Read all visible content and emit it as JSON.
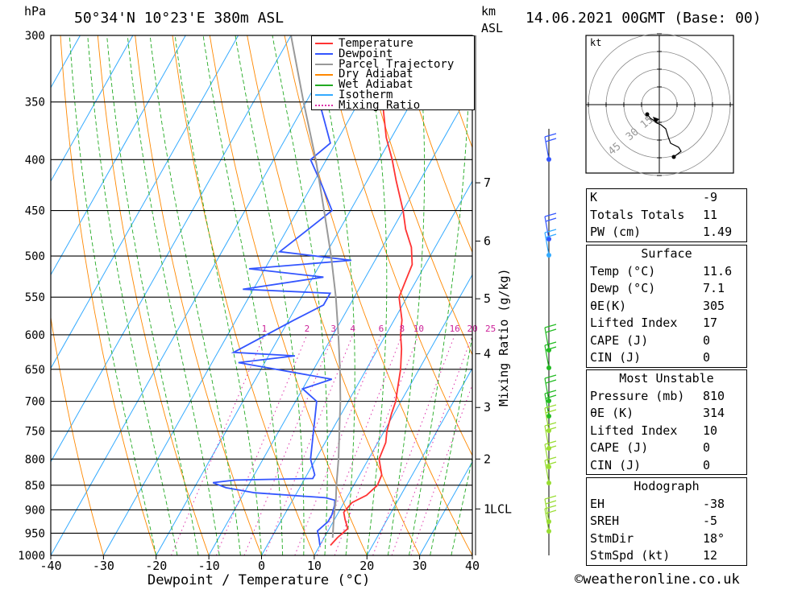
{
  "header": {
    "hpa_label": "hPa",
    "location": "50°34'N 10°23'E 380m ASL",
    "km_label": "km",
    "asl_label": "ASL",
    "datetime": "14.06.2021 00GMT (Base: 00)"
  },
  "axes": {
    "xlabel": "Dewpoint / Temperature (°C)",
    "mixing_label": "Mixing Ratio (g/kg)",
    "lcl_label": "LCL",
    "kt_label": "kt"
  },
  "legend": {
    "items": [
      {
        "label": "Temperature",
        "color": "#ff3333",
        "style": "solid"
      },
      {
        "label": "Dewpoint",
        "color": "#3355ff",
        "style": "solid"
      },
      {
        "label": "Parcel Trajectory",
        "color": "#999999",
        "style": "solid"
      },
      {
        "label": "Dry Adiabat",
        "color": "#ff8800",
        "style": "solid"
      },
      {
        "label": "Wet Adiabat",
        "color": "#22aa22",
        "style": "solid"
      },
      {
        "label": "Isotherm",
        "color": "#33aaff",
        "style": "solid"
      },
      {
        "label": "Mixing Ratio",
        "color": "#dd33aa",
        "style": "dotted"
      }
    ]
  },
  "chart_data": {
    "type": "line",
    "title": "50°34'N 10°23'E 380m ASL",
    "xlabel": "Dewpoint / Temperature (°C)",
    "ylabel": "hPa",
    "xlim": [
      -40,
      40
    ],
    "ylim": [
      1000,
      300
    ],
    "y_scale": "log",
    "pressure_ticks": [
      300,
      350,
      400,
      450,
      500,
      550,
      600,
      650,
      700,
      750,
      800,
      850,
      900,
      950,
      1000
    ],
    "temperature_ticks": [
      -40,
      -30,
      -20,
      -10,
      0,
      10,
      20,
      30,
      40
    ],
    "km_ticks": [
      {
        "km": "1",
        "p": 898
      },
      {
        "km": "2",
        "p": 800
      },
      {
        "km": "3",
        "p": 710
      },
      {
        "km": "4",
        "p": 627
      },
      {
        "km": "5",
        "p": 552
      },
      {
        "km": "6",
        "p": 483
      },
      {
        "km": "7",
        "p": 422
      }
    ],
    "mixing_ratio_labels": [
      "1",
      "2",
      "3",
      "4",
      "6",
      "8",
      "10",
      "16",
      "20",
      "25"
    ],
    "series": [
      {
        "name": "Temperature",
        "color": "#ff3333",
        "points": [
          [
            977,
            12.0
          ],
          [
            960,
            12.5
          ],
          [
            940,
            13.5
          ],
          [
            920,
            12.0
          ],
          [
            905,
            11.0
          ],
          [
            885,
            11.5
          ],
          [
            870,
            13.5
          ],
          [
            850,
            14.5
          ],
          [
            830,
            14.2
          ],
          [
            800,
            12.0
          ],
          [
            770,
            11.5
          ],
          [
            750,
            10.5
          ],
          [
            720,
            9.5
          ],
          [
            700,
            9.0
          ],
          [
            680,
            8.0
          ],
          [
            650,
            6.5
          ],
          [
            620,
            4.5
          ],
          [
            600,
            2.8
          ],
          [
            580,
            1.5
          ],
          [
            550,
            -1.5
          ],
          [
            530,
            -2.0
          ],
          [
            510,
            -2.5
          ],
          [
            490,
            -4.5
          ],
          [
            470,
            -7.5
          ],
          [
            450,
            -10.0
          ],
          [
            420,
            -14.5
          ],
          [
            400,
            -17.5
          ],
          [
            380,
            -21.0
          ],
          [
            350,
            -25.5
          ],
          [
            320,
            -31.0
          ],
          [
            300,
            -35.5
          ]
        ]
      },
      {
        "name": "Dewpoint",
        "color": "#3355ff",
        "points": [
          [
            977,
            10.0
          ],
          [
            960,
            9.0
          ],
          [
            945,
            8.0
          ],
          [
            925,
            9.0
          ],
          [
            910,
            9.0
          ],
          [
            890,
            8.5
          ],
          [
            880,
            8.0
          ],
          [
            875,
            6.0
          ],
          [
            865,
            -8.0
          ],
          [
            855,
            -14.0
          ],
          [
            845,
            -17.0
          ],
          [
            840,
            -13.0
          ],
          [
            837,
            1.5
          ],
          [
            830,
            1.5
          ],
          [
            800,
            -1.0
          ],
          [
            700,
            -6.0
          ],
          [
            680,
            -10.0
          ],
          [
            665,
            -5.5
          ],
          [
            640,
            -25.0
          ],
          [
            630,
            -15.0
          ],
          [
            625,
            -27.0
          ],
          [
            580,
            -19.0
          ],
          [
            560,
            -15.0
          ],
          [
            545,
            -15.0
          ],
          [
            540,
            -32.0
          ],
          [
            525,
            -18.0
          ],
          [
            515,
            -33.0
          ],
          [
            505,
            -14.5
          ],
          [
            495,
            -29.0
          ],
          [
            470,
            -26.0
          ],
          [
            450,
            -23.5
          ],
          [
            425,
            -28.0
          ],
          [
            400,
            -33.0
          ],
          [
            385,
            -31.0
          ],
          [
            350,
            -37.5
          ],
          [
            300,
            -46.0
          ]
        ]
      },
      {
        "name": "Parcel Trajectory",
        "color": "#999999",
        "points": [
          [
            960,
            11.6
          ],
          [
            930,
            10.3
          ],
          [
            900,
            9.0
          ],
          [
            880,
            8.2
          ],
          [
            850,
            6.7
          ],
          [
            800,
            4.3
          ],
          [
            750,
            1.5
          ],
          [
            700,
            -1.5
          ],
          [
            650,
            -5.0
          ],
          [
            600,
            -9.0
          ],
          [
            550,
            -13.5
          ],
          [
            500,
            -18.8
          ],
          [
            450,
            -25.0
          ],
          [
            400,
            -32.0
          ],
          [
            350,
            -40.5
          ],
          [
            300,
            -50.0
          ]
        ]
      }
    ]
  },
  "hodograph": {
    "ring_labels": [
      "15",
      "30",
      "45"
    ]
  },
  "indices": [
    {
      "k": "K",
      "v": "-9"
    },
    {
      "k": "Totals Totals",
      "v": "11"
    },
    {
      "k": "PW (cm)",
      "v": "1.49"
    }
  ],
  "surface": {
    "title": "Surface",
    "rows": [
      {
        "k": "Temp (°C)",
        "v": "11.6"
      },
      {
        "k": "Dewp (°C)",
        "v": "7.1"
      },
      {
        "k": "θE(K)",
        "v": "305"
      },
      {
        "k": "Lifted Index",
        "v": "17"
      },
      {
        "k": "CAPE (J)",
        "v": "0"
      },
      {
        "k": "CIN (J)",
        "v": "0"
      }
    ]
  },
  "most_unstable": {
    "title": "Most Unstable",
    "rows": [
      {
        "k": "Pressure (mb)",
        "v": "810"
      },
      {
        "k": "θE (K)",
        "v": "314"
      },
      {
        "k": "Lifted Index",
        "v": "10"
      },
      {
        "k": "CAPE (J)",
        "v": "0"
      },
      {
        "k": "CIN (J)",
        "v": "0"
      }
    ]
  },
  "hodograph_table": {
    "title": "Hodograph",
    "rows": [
      {
        "k": "EH",
        "v": "-38"
      },
      {
        "k": "SREH",
        "v": "-5"
      },
      {
        "k": "StmDir",
        "v": "18°"
      },
      {
        "k": "StmSpd (kt)",
        "v": "12"
      }
    ]
  },
  "footer": {
    "copyright": "©weatheronline.co.uk"
  }
}
